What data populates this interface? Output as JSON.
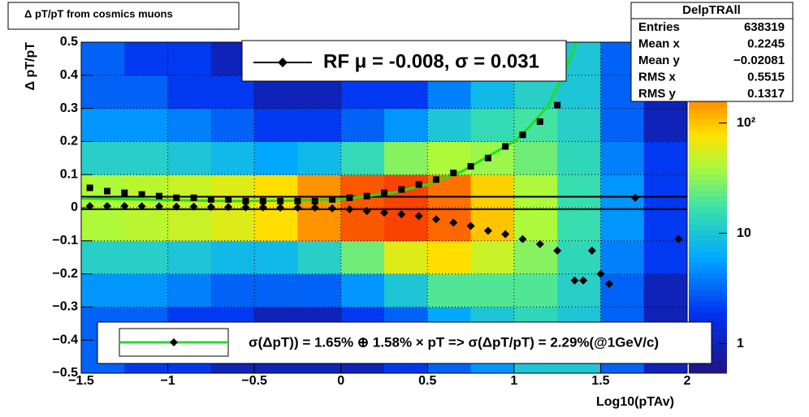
{
  "chart_data": {
    "type": "heatmap",
    "title": "Δ pT/pT from cosmics muons",
    "xlabel": "Log10(pTAv)",
    "ylabel": "Δ pT/pT",
    "legend_top": "RF μ = -0.008, σ =   0.031",
    "legend_bottom": "σ(ΔpT)) =  1.65% ⊕  1.58% × pT => σ(ΔpT/pT) =  2.29%(@1GeV/c)",
    "xlim": [
      -1.5,
      2
    ],
    "ylim": [
      -0.5,
      0.5
    ],
    "xticks": [
      {
        "value": -1.5,
        "label": "−1.5"
      },
      {
        "value": -1,
        "label": "−1"
      },
      {
        "value": -0.5,
        "label": "−0.5"
      },
      0,
      0.5,
      1,
      1.5,
      2
    ],
    "yticks": [
      {
        "value": -0.5,
        "label": "−0.5"
      },
      {
        "value": -0.4,
        "label": "−0.4"
      },
      {
        "value": -0.3,
        "label": "−0.3"
      },
      {
        "value": -0.2,
        "label": "−0.2"
      },
      {
        "value": -0.1,
        "label": "−0.1"
      },
      0,
      0.1,
      0.2,
      0.3,
      0.4,
      0.5
    ],
    "grid": true,
    "zlog": true,
    "zlim": [
      0.54,
      540
    ],
    "zticks": [
      1,
      10,
      {
        "value": 100,
        "label": "10²"
      }
    ],
    "xbins": [
      -1.5,
      -1.25,
      -1,
      -0.75,
      -0.5,
      -0.25,
      0,
      0.25,
      0.5,
      0.75,
      1,
      1.25,
      1.5,
      1.75,
      2
    ],
    "ybins": [
      -0.5,
      -0.4,
      -0.3,
      -0.2,
      -0.1,
      0,
      0.1,
      0.2,
      0.3,
      0.4,
      0.5
    ],
    "z": [
      [
        3,
        2,
        2,
        1,
        1,
        1,
        1,
        2,
        3,
        5,
        10,
        10,
        3,
        1
      ],
      [
        3,
        3,
        2,
        2,
        1,
        1,
        2,
        3,
        6,
        10,
        14,
        10,
        3,
        1
      ],
      [
        5,
        5,
        4,
        3,
        3,
        3,
        5,
        10,
        20,
        20,
        20,
        12,
        3,
        1
      ],
      [
        12,
        12,
        10,
        8,
        8,
        12,
        25,
        60,
        80,
        50,
        30,
        14,
        4,
        2
      ],
      [
        40,
        45,
        50,
        60,
        80,
        150,
        250,
        300,
        220,
        100,
        40,
        16,
        5,
        2
      ],
      [
        40,
        45,
        50,
        60,
        80,
        150,
        250,
        300,
        200,
        90,
        40,
        16,
        5,
        2
      ],
      [
        12,
        12,
        10,
        8,
        6,
        8,
        15,
        30,
        40,
        35,
        25,
        14,
        4,
        2
      ],
      [
        5,
        5,
        4,
        3,
        2,
        2,
        3,
        5,
        10,
        15,
        18,
        12,
        3,
        1
      ],
      [
        3,
        3,
        2,
        2,
        1,
        1,
        2,
        2,
        4,
        8,
        12,
        10,
        3,
        1
      ],
      [
        3,
        2,
        2,
        1,
        1,
        1,
        1,
        2,
        3,
        5,
        10,
        10,
        3,
        1
      ]
    ],
    "lines": [
      0.033,
      -0.005
    ],
    "series": [
      {
        "marker": "square",
        "color": "#000000",
        "x": [
          -1.45,
          -1.35,
          -1.25,
          -1.15,
          -1.05,
          -0.95,
          -0.85,
          -0.75,
          -0.65,
          -0.55,
          -0.45,
          -0.35,
          -0.25,
          -0.15,
          -0.05,
          0.05,
          0.15,
          0.25,
          0.35,
          0.45,
          0.55,
          0.65,
          0.75,
          0.85,
          0.95,
          1.05,
          1.15,
          1.25
        ],
        "values": [
          0.06,
          0.05,
          0.045,
          0.04,
          0.035,
          0.03,
          0.03,
          0.025,
          0.025,
          0.02,
          0.02,
          0.02,
          0.02,
          0.02,
          0.025,
          0.03,
          0.035,
          0.045,
          0.055,
          0.07,
          0.085,
          0.105,
          0.125,
          0.15,
          0.185,
          0.22,
          0.26,
          0.31
        ]
      },
      {
        "marker": "diamond",
        "color": "#000000",
        "x": [
          -1.45,
          -1.35,
          -1.25,
          -1.15,
          -1.05,
          -0.95,
          -0.85,
          -0.75,
          -0.65,
          -0.55,
          -0.45,
          -0.35,
          -0.25,
          -0.15,
          -0.05,
          0.05,
          0.15,
          0.25,
          0.35,
          0.45,
          0.55,
          0.65,
          0.75,
          0.85,
          0.95,
          1.05,
          1.15,
          1.25,
          1.35,
          1.4,
          1.45,
          1.5,
          1.55,
          1.7,
          1.95
        ],
        "values": [
          0.005,
          0.005,
          0.005,
          0.004,
          0.004,
          0.003,
          0.003,
          0.002,
          0.002,
          0.001,
          0.001,
          0,
          0,
          0,
          -0.002,
          -0.005,
          -0.01,
          -0.015,
          -0.02,
          -0.025,
          -0.035,
          -0.045,
          -0.055,
          -0.07,
          -0.08,
          -0.095,
          -0.11,
          -0.13,
          -0.22,
          -0.22,
          -0.13,
          -0.2,
          -0.23,
          0.03,
          -0.095
        ]
      },
      {
        "marker": "curve",
        "color": "#22dd22",
        "x": [
          -1.5,
          -1.2,
          -0.9,
          -0.6,
          -0.3,
          0,
          0.3,
          0.5,
          0.7,
          0.9,
          1.0,
          1.1,
          1.2,
          1.3,
          1.4
        ],
        "values": [
          0.028,
          0.025,
          0.022,
          0.02,
          0.021,
          0.025,
          0.045,
          0.07,
          0.11,
          0.17,
          0.2,
          0.25,
          0.31,
          0.42,
          0.55
        ]
      }
    ],
    "stats": {
      "title": "DelpTRAll",
      "rows": [
        [
          "Entries",
          "638319"
        ],
        [
          "Mean x",
          "0.2245"
        ],
        [
          "Mean y",
          "−0.02081"
        ],
        [
          "RMS x",
          "0.5515"
        ],
        [
          "RMS y",
          "0.1317"
        ]
      ]
    }
  }
}
